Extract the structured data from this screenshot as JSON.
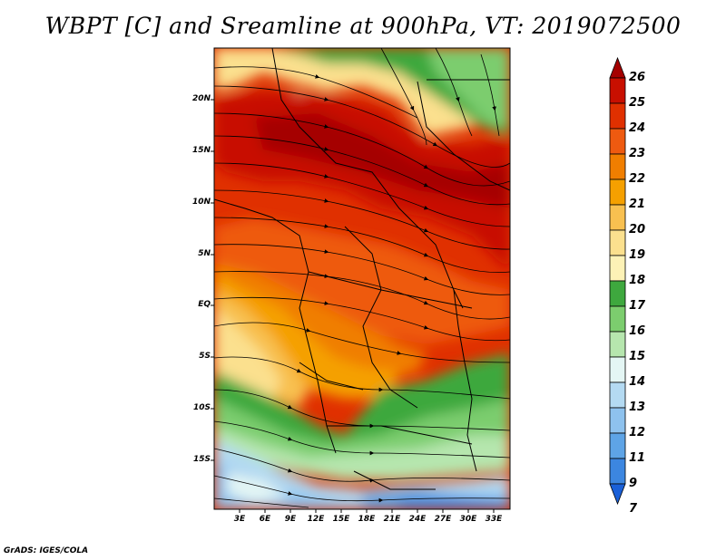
{
  "title": "WBPT [C] and Sreamline at 900hPa, VT: 2019072500",
  "footer": "GrADS: IGES/COLA",
  "map": {
    "lat_labels": [
      "20N",
      "15N",
      "10N",
      "5N",
      "EQ",
      "5S",
      "10S",
      "15S"
    ],
    "lon_labels": [
      "3E",
      "6E",
      "9E",
      "12E",
      "15E",
      "18E",
      "21E",
      "24E",
      "27E",
      "30E",
      "33E"
    ]
  },
  "colorbar": {
    "labels": [
      "26",
      "25",
      "24",
      "23",
      "22",
      "21",
      "20",
      "19",
      "18",
      "17",
      "16",
      "15",
      "14",
      "13",
      "12",
      "11",
      "9",
      "7"
    ],
    "colors": [
      "#a50000",
      "#c80f00",
      "#e03000",
      "#ee5a10",
      "#f07e00",
      "#f5a000",
      "#f8c050",
      "#fbe08e",
      "#fdf2b6",
      "#3ea83e",
      "#7ccd6e",
      "#b6e6ae",
      "#e4f6f4",
      "#b4daf2",
      "#8ec2ee",
      "#5ea4e6",
      "#3c86e0",
      "#1a60d8"
    ]
  }
}
